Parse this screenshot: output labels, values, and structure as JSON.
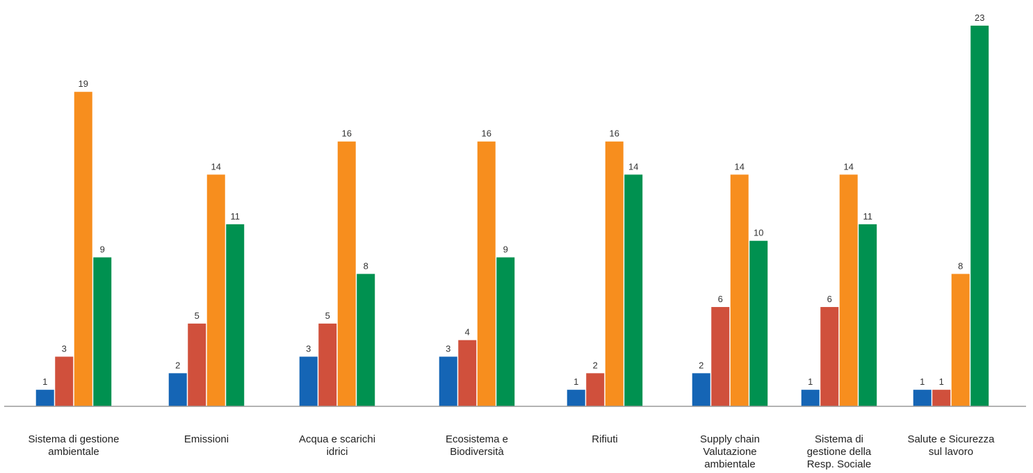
{
  "chart_data": {
    "type": "bar",
    "categories": [
      [
        "Sistema di gestione",
        "ambientale"
      ],
      [
        "Emissioni"
      ],
      [
        "Acqua e scarichi",
        "idrici"
      ],
      [
        "Ecosistema e",
        "Biodiversità"
      ],
      [
        "Rifiuti"
      ],
      [
        "Supply chain",
        "Valutazione",
        "ambientale"
      ],
      [
        "Sistema di",
        "gestione della",
        "Resp. Sociale"
      ],
      [
        "Salute e Sicurezza",
        "sul lavoro"
      ]
    ],
    "series": [
      {
        "color": "#1565b5",
        "values": [
          1,
          2,
          3,
          3,
          1,
          2,
          1,
          1
        ]
      },
      {
        "color": "#d0503c",
        "values": [
          3,
          5,
          5,
          4,
          2,
          6,
          6,
          1
        ]
      },
      {
        "color": "#f78e1e",
        "values": [
          19,
          14,
          16,
          16,
          16,
          14,
          14,
          8
        ]
      },
      {
        "color": "#009150",
        "values": [
          9,
          11,
          8,
          9,
          14,
          10,
          11,
          23
        ]
      }
    ],
    "title": "",
    "xlabel": "",
    "ylabel": "",
    "ylim": [
      0,
      23.5
    ],
    "grid": false,
    "legend": "none"
  }
}
